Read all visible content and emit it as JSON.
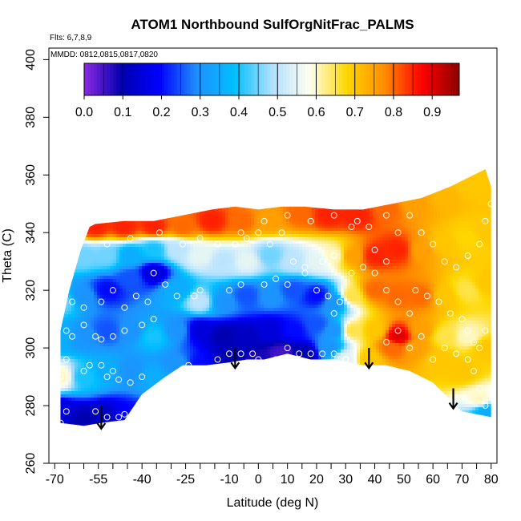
{
  "chart_data": {
    "type": "heatmap",
    "title": "ATOM1 Northbound SulfOrgNitFrac_PALMS",
    "note_flights": "Flts: 6,7,8,9",
    "note_dates": "MMDD: 0812,0815,0817,0820",
    "xlabel": "Latitude (deg N)",
    "ylabel": "Theta (C)",
    "xlim": [
      -72,
      82
    ],
    "ylim": [
      260,
      404
    ],
    "x_ticks": [
      -70,
      -65,
      -60,
      -55,
      -50,
      -45,
      -40,
      -35,
      -30,
      -25,
      -20,
      -15,
      -10,
      -5,
      0,
      5,
      10,
      15,
      20,
      25,
      30,
      35,
      40,
      45,
      50,
      55,
      60,
      65,
      70,
      75,
      80
    ],
    "x_tick_labels": [
      "-70",
      "-55",
      "-40",
      "-25",
      "-10",
      "0",
      "10",
      "20",
      "30",
      "40",
      "50",
      "60",
      "70",
      "80"
    ],
    "x_tick_label_values": [
      -70,
      -55,
      -40,
      -25,
      -10,
      0,
      10,
      20,
      30,
      40,
      50,
      60,
      70,
      80
    ],
    "y_ticks": [
      260,
      280,
      300,
      320,
      340,
      360,
      380,
      400
    ],
    "y_tick_labels": [
      "260",
      "280",
      "300",
      "320",
      "340",
      "360",
      "380",
      "400"
    ],
    "colorbar": {
      "min": 0.0,
      "max": 0.97,
      "tick_values": [
        0.0,
        0.1,
        0.2,
        0.3,
        0.4,
        0.5,
        0.6,
        0.7,
        0.8,
        0.9
      ],
      "tick_labels": [
        "0.0",
        "0.1",
        "0.2",
        "0.3",
        "0.4",
        "0.5",
        "0.6",
        "0.7",
        "0.8",
        "0.9"
      ],
      "colors": [
        "#8a2be2",
        "#0000b0",
        "#0000ff",
        "#1e90ff",
        "#00bfff",
        "#b0e0ff",
        "#fffff0",
        "#ffd700",
        "#ff8c00",
        "#ff0000",
        "#8b0000"
      ]
    },
    "field_points": [
      {
        "x": -68,
        "y": 278,
        "v": 0.15
      },
      {
        "x": -60,
        "y": 275,
        "v": 0.1
      },
      {
        "x": -52,
        "y": 276,
        "v": 0.12
      },
      {
        "x": -46,
        "y": 276,
        "v": 0.2
      },
      {
        "x": -68,
        "y": 290,
        "v": 0.6
      },
      {
        "x": -60,
        "y": 290,
        "v": 0.4
      },
      {
        "x": -52,
        "y": 292,
        "v": 0.35
      },
      {
        "x": -44,
        "y": 292,
        "v": 0.3
      },
      {
        "x": -36,
        "y": 290,
        "v": 0.35
      },
      {
        "x": -28,
        "y": 294,
        "v": 0.3
      },
      {
        "x": -20,
        "y": 294,
        "v": 0.2
      },
      {
        "x": -10,
        "y": 296,
        "v": 0.1
      },
      {
        "x": 0,
        "y": 296,
        "v": 0.08
      },
      {
        "x": 8,
        "y": 298,
        "v": 0.05
      },
      {
        "x": 16,
        "y": 298,
        "v": 0.1
      },
      {
        "x": 24,
        "y": 300,
        "v": 0.3
      },
      {
        "x": 30,
        "y": 296,
        "v": 0.55
      },
      {
        "x": 38,
        "y": 296,
        "v": 0.7
      },
      {
        "x": 46,
        "y": 300,
        "v": 0.8
      },
      {
        "x": 54,
        "y": 300,
        "v": 0.75
      },
      {
        "x": 62,
        "y": 296,
        "v": 0.7
      },
      {
        "x": 70,
        "y": 292,
        "v": 0.7
      },
      {
        "x": 76,
        "y": 282,
        "v": 0.6
      },
      {
        "x": 78,
        "y": 278,
        "v": 0.35
      },
      {
        "x": -68,
        "y": 304,
        "v": 0.35
      },
      {
        "x": -60,
        "y": 304,
        "v": 0.3
      },
      {
        "x": -52,
        "y": 306,
        "v": 0.25
      },
      {
        "x": -44,
        "y": 306,
        "v": 0.3
      },
      {
        "x": -36,
        "y": 304,
        "v": 0.4
      },
      {
        "x": -28,
        "y": 306,
        "v": 0.3
      },
      {
        "x": -20,
        "y": 306,
        "v": 0.15
      },
      {
        "x": -12,
        "y": 304,
        "v": 0.1
      },
      {
        "x": -4,
        "y": 304,
        "v": 0.12
      },
      {
        "x": 4,
        "y": 306,
        "v": 0.15
      },
      {
        "x": 12,
        "y": 306,
        "v": 0.2
      },
      {
        "x": 20,
        "y": 308,
        "v": 0.25
      },
      {
        "x": 26,
        "y": 306,
        "v": 0.3
      },
      {
        "x": 32,
        "y": 306,
        "v": 0.65
      },
      {
        "x": 40,
        "y": 306,
        "v": 0.7
      },
      {
        "x": 48,
        "y": 304,
        "v": 0.9
      },
      {
        "x": 56,
        "y": 306,
        "v": 0.75
      },
      {
        "x": 64,
        "y": 304,
        "v": 0.65
      },
      {
        "x": 72,
        "y": 304,
        "v": 0.6
      },
      {
        "x": 78,
        "y": 300,
        "v": 0.7
      },
      {
        "x": -68,
        "y": 316,
        "v": 0.45
      },
      {
        "x": -60,
        "y": 318,
        "v": 0.3
      },
      {
        "x": -52,
        "y": 320,
        "v": 0.2
      },
      {
        "x": -44,
        "y": 324,
        "v": 0.25
      },
      {
        "x": -36,
        "y": 326,
        "v": 0.15
      },
      {
        "x": -28,
        "y": 320,
        "v": 0.35
      },
      {
        "x": -20,
        "y": 316,
        "v": 0.5
      },
      {
        "x": -12,
        "y": 316,
        "v": 0.3
      },
      {
        "x": -4,
        "y": 318,
        "v": 0.25
      },
      {
        "x": 4,
        "y": 318,
        "v": 0.3
      },
      {
        "x": 12,
        "y": 320,
        "v": 0.25
      },
      {
        "x": 20,
        "y": 318,
        "v": 0.2
      },
      {
        "x": 26,
        "y": 316,
        "v": 0.3
      },
      {
        "x": 32,
        "y": 318,
        "v": 0.65
      },
      {
        "x": 40,
        "y": 320,
        "v": 0.8
      },
      {
        "x": 48,
        "y": 318,
        "v": 0.8
      },
      {
        "x": 56,
        "y": 318,
        "v": 0.8
      },
      {
        "x": 64,
        "y": 318,
        "v": 0.7
      },
      {
        "x": 72,
        "y": 320,
        "v": 0.65
      },
      {
        "x": 78,
        "y": 322,
        "v": 0.7
      },
      {
        "x": -60,
        "y": 332,
        "v": 0.45
      },
      {
        "x": -52,
        "y": 332,
        "v": 0.45
      },
      {
        "x": -44,
        "y": 332,
        "v": 0.35
      },
      {
        "x": -36,
        "y": 334,
        "v": 0.4
      },
      {
        "x": -28,
        "y": 334,
        "v": 0.5
      },
      {
        "x": -20,
        "y": 332,
        "v": 0.55
      },
      {
        "x": -12,
        "y": 330,
        "v": 0.5
      },
      {
        "x": -4,
        "y": 330,
        "v": 0.55
      },
      {
        "x": 4,
        "y": 332,
        "v": 0.45
      },
      {
        "x": 12,
        "y": 330,
        "v": 0.5
      },
      {
        "x": 20,
        "y": 330,
        "v": 0.55
      },
      {
        "x": 26,
        "y": 332,
        "v": 0.6
      },
      {
        "x": 32,
        "y": 332,
        "v": 0.75
      },
      {
        "x": 40,
        "y": 332,
        "v": 0.85
      },
      {
        "x": 48,
        "y": 334,
        "v": 0.85
      },
      {
        "x": 56,
        "y": 334,
        "v": 0.75
      },
      {
        "x": 64,
        "y": 336,
        "v": 0.7
      },
      {
        "x": 72,
        "y": 338,
        "v": 0.68
      },
      {
        "x": 78,
        "y": 340,
        "v": 0.7
      },
      {
        "x": -56,
        "y": 342,
        "v": 0.85
      },
      {
        "x": -46,
        "y": 342,
        "v": 0.85
      },
      {
        "x": -36,
        "y": 342,
        "v": 0.85
      },
      {
        "x": -26,
        "y": 342,
        "v": 0.8
      },
      {
        "x": -16,
        "y": 344,
        "v": 0.85
      },
      {
        "x": -6,
        "y": 344,
        "v": 0.8
      },
      {
        "x": 4,
        "y": 344,
        "v": 0.75
      },
      {
        "x": 14,
        "y": 346,
        "v": 0.8
      },
      {
        "x": 24,
        "y": 346,
        "v": 0.85
      },
      {
        "x": 34,
        "y": 346,
        "v": 0.85
      },
      {
        "x": 44,
        "y": 348,
        "v": 0.8
      },
      {
        "x": 54,
        "y": 350,
        "v": 0.75
      },
      {
        "x": 64,
        "y": 352,
        "v": 0.72
      },
      {
        "x": 74,
        "y": 356,
        "v": 0.7
      },
      {
        "x": 78,
        "y": 360,
        "v": 0.7
      }
    ],
    "upper_boundary": [
      [
        -68,
        306
      ],
      [
        -65,
        320
      ],
      [
        -61,
        334
      ],
      [
        -58,
        342
      ],
      [
        -56,
        343
      ],
      [
        -46,
        344
      ],
      [
        -36,
        344
      ],
      [
        -26,
        346
      ],
      [
        -16,
        348
      ],
      [
        -8,
        349
      ],
      [
        0,
        348
      ],
      [
        8,
        349
      ],
      [
        16,
        349
      ],
      [
        26,
        348
      ],
      [
        36,
        348
      ],
      [
        46,
        350
      ],
      [
        56,
        352
      ],
      [
        66,
        356
      ],
      [
        74,
        360
      ],
      [
        78,
        362
      ],
      [
        80,
        356
      ]
    ],
    "lower_boundary": [
      [
        -68,
        274
      ],
      [
        -60,
        273
      ],
      [
        -54,
        274
      ],
      [
        -46,
        275
      ],
      [
        -40,
        284
      ],
      [
        -32,
        290
      ],
      [
        -26,
        294
      ],
      [
        -18,
        294
      ],
      [
        -10,
        295
      ],
      [
        -4,
        296
      ],
      [
        2,
        296
      ],
      [
        10,
        298
      ],
      [
        18,
        296
      ],
      [
        26,
        296
      ],
      [
        36,
        294
      ],
      [
        44,
        294
      ],
      [
        52,
        292
      ],
      [
        60,
        288
      ],
      [
        66,
        282
      ],
      [
        70,
        278
      ],
      [
        80,
        276
      ]
    ],
    "observations": [
      [
        -68,
        274
      ],
      [
        -66,
        278
      ],
      [
        -62,
        272
      ],
      [
        -56,
        278
      ],
      [
        -52,
        276
      ],
      [
        -48,
        276
      ],
      [
        -46,
        277
      ],
      [
        -68,
        290
      ],
      [
        -66,
        296
      ],
      [
        -60,
        292
      ],
      [
        -58,
        294
      ],
      [
        -54,
        294
      ],
      [
        -52,
        290
      ],
      [
        -50,
        292
      ],
      [
        -48,
        289
      ],
      [
        -44,
        288
      ],
      [
        -40,
        290
      ],
      [
        -66,
        306
      ],
      [
        -64,
        304
      ],
      [
        -60,
        308
      ],
      [
        -56,
        304
      ],
      [
        -54,
        303
      ],
      [
        -50,
        304
      ],
      [
        -46,
        306
      ],
      [
        -40,
        308
      ],
      [
        -36,
        310
      ],
      [
        -68,
        312
      ],
      [
        -64,
        316
      ],
      [
        -60,
        314
      ],
      [
        -54,
        316
      ],
      [
        -50,
        320
      ],
      [
        -46,
        314
      ],
      [
        -42,
        318
      ],
      [
        -38,
        316
      ],
      [
        -36,
        326
      ],
      [
        -32,
        322
      ],
      [
        -28,
        318
      ],
      [
        -22,
        318
      ],
      [
        -20,
        320
      ],
      [
        -14,
        296
      ],
      [
        -10,
        298
      ],
      [
        -6,
        298
      ],
      [
        -2,
        298
      ],
      [
        0,
        296
      ],
      [
        6,
        296
      ],
      [
        10,
        300
      ],
      [
        14,
        298
      ],
      [
        18,
        298
      ],
      [
        22,
        298
      ],
      [
        26,
        298
      ],
      [
        30,
        296
      ],
      [
        -24,
        294
      ],
      [
        -20,
        290
      ],
      [
        -16,
        292
      ],
      [
        -10,
        320
      ],
      [
        -6,
        322
      ],
      [
        2,
        322
      ],
      [
        6,
        324
      ],
      [
        10,
        322
      ],
      [
        16,
        326
      ],
      [
        20,
        320
      ],
      [
        24,
        318
      ],
      [
        26,
        312
      ],
      [
        28,
        316
      ],
      [
        -8,
        336
      ],
      [
        -4,
        338
      ],
      [
        0,
        340
      ],
      [
        4,
        336
      ],
      [
        8,
        340
      ],
      [
        12,
        330
      ],
      [
        16,
        328
      ],
      [
        22,
        330
      ],
      [
        26,
        332
      ],
      [
        32,
        326
      ],
      [
        36,
        328
      ],
      [
        40,
        334
      ],
      [
        44,
        330
      ],
      [
        -52,
        336
      ],
      [
        -44,
        338
      ],
      [
        -34,
        340
      ],
      [
        -26,
        336
      ],
      [
        -20,
        338
      ],
      [
        -14,
        336
      ],
      [
        -6,
        340
      ],
      [
        2,
        344
      ],
      [
        10,
        346
      ],
      [
        18,
        344
      ],
      [
        26,
        346
      ],
      [
        34,
        344
      ],
      [
        38,
        342
      ],
      [
        44,
        346
      ],
      [
        32,
        342
      ],
      [
        40,
        326
      ],
      [
        44,
        320
      ],
      [
        48,
        316
      ],
      [
        52,
        312
      ],
      [
        54,
        320
      ],
      [
        58,
        318
      ],
      [
        62,
        316
      ],
      [
        66,
        312
      ],
      [
        70,
        310
      ],
      [
        72,
        306
      ],
      [
        74,
        302
      ],
      [
        76,
        300
      ],
      [
        78,
        306
      ],
      [
        44,
        302
      ],
      [
        48,
        306
      ],
      [
        52,
        300
      ],
      [
        56,
        304
      ],
      [
        60,
        296
      ],
      [
        64,
        300
      ],
      [
        68,
        298
      ],
      [
        72,
        296
      ],
      [
        74,
        292
      ],
      [
        76,
        286
      ],
      [
        78,
        280
      ],
      [
        48,
        340
      ],
      [
        52,
        346
      ],
      [
        56,
        340
      ],
      [
        60,
        336
      ],
      [
        64,
        330
      ],
      [
        68,
        328
      ],
      [
        72,
        332
      ],
      [
        76,
        336
      ],
      [
        78,
        344
      ],
      [
        80,
        350
      ]
    ],
    "arrows": [
      {
        "x": -54,
        "y_from": 280,
        "y_to": 272
      },
      {
        "x": -8,
        "y_from": 300,
        "y_to": 293
      },
      {
        "x": 38,
        "y_from": 300,
        "y_to": 293
      },
      {
        "x": 67,
        "y_from": 286,
        "y_to": 279
      }
    ]
  }
}
